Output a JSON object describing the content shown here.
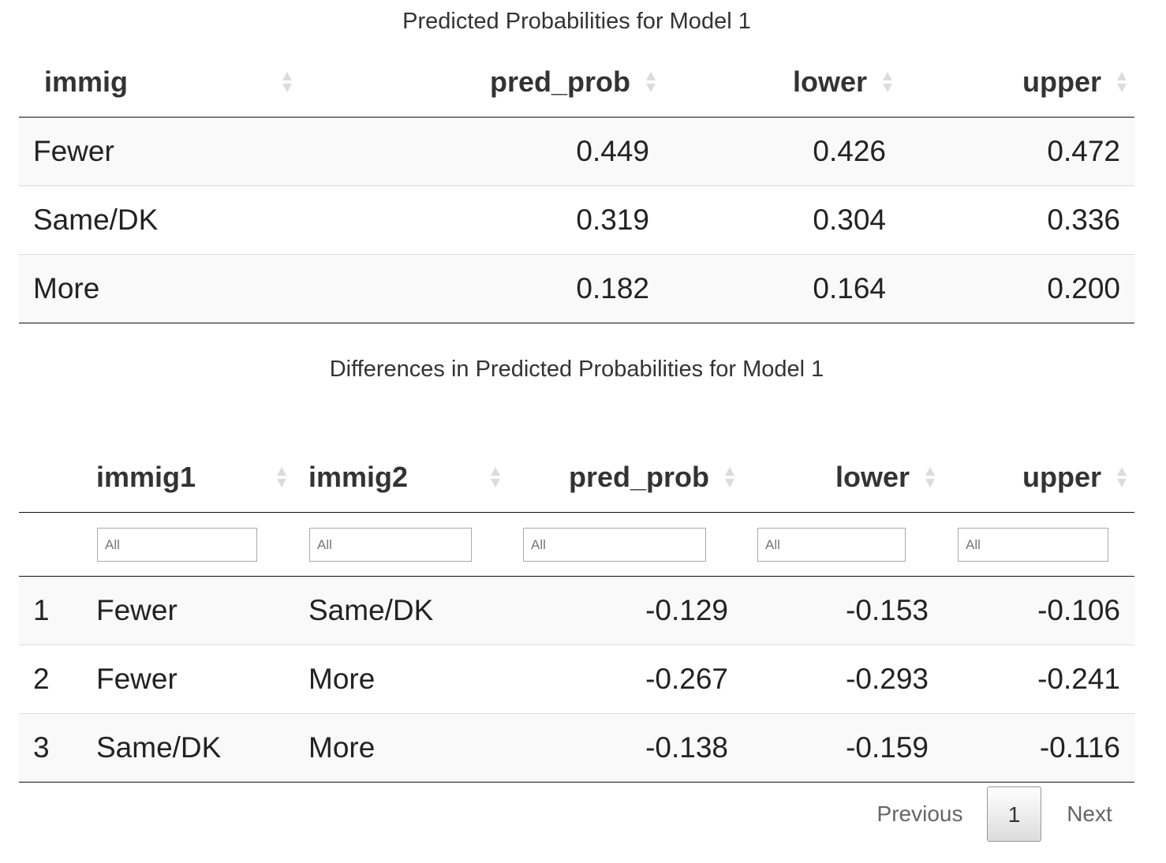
{
  "table1": {
    "caption": "Predicted Probabilities for Model 1",
    "columns": [
      "immig",
      "pred_prob",
      "lower",
      "upper"
    ],
    "rows": [
      [
        "Fewer",
        "0.449",
        "0.426",
        "0.472"
      ],
      [
        "Same/DK",
        "0.319",
        "0.304",
        "0.336"
      ],
      [
        "More",
        "0.182",
        "0.164",
        "0.200"
      ]
    ]
  },
  "table2": {
    "caption": "Differences in Predicted Probabilities for Model 1",
    "columns": [
      "",
      "immig1",
      "immig2",
      "pred_prob",
      "lower",
      "upper"
    ],
    "filter_placeholder": "All",
    "rows": [
      [
        "1",
        "Fewer",
        "Same/DK",
        "-0.129",
        "-0.153",
        "-0.106"
      ],
      [
        "2",
        "Fewer",
        "More",
        "-0.267",
        "-0.293",
        "-0.241"
      ],
      [
        "3",
        "Same/DK",
        "More",
        "-0.138",
        "-0.159",
        "-0.116"
      ]
    ]
  },
  "pagination": {
    "previous_label": "Previous",
    "current_page": "1",
    "next_label": "Next"
  }
}
